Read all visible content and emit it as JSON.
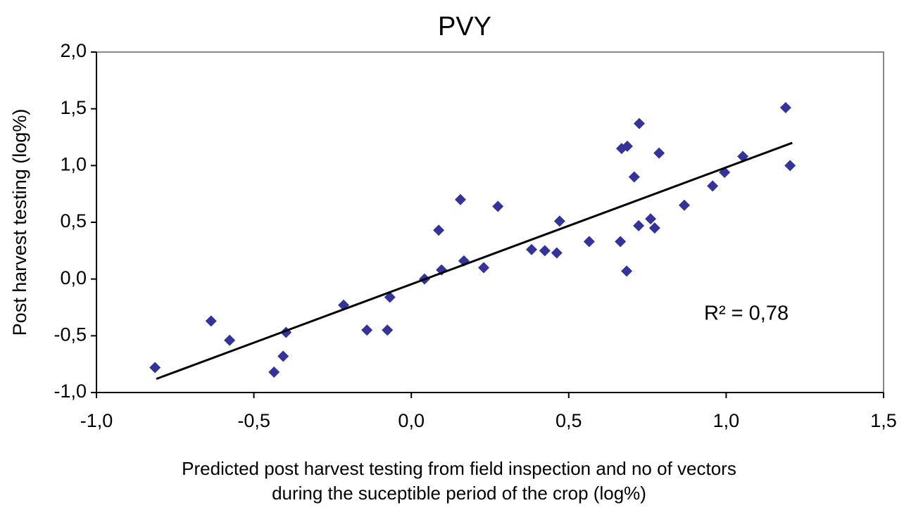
{
  "chart_data": {
    "type": "scatter",
    "title": "PVY",
    "x_label": [
      "Predicted post harvest testing from field inspection and no of vectors",
      "during the suceptible period of the crop (log%)"
    ],
    "y_label": "Post harvest testing (log%)",
    "annotation": "R² = 0,78",
    "color": "#333399",
    "xlim": [
      -1.0,
      1.5
    ],
    "ylim": [
      -1.0,
      2.0
    ],
    "xticks": [
      {
        "value": -1.0,
        "label": "-1,0"
      },
      {
        "value": -0.5,
        "label": "-0,5"
      },
      {
        "value": 0,
        "label": "0,0"
      },
      {
        "value": 0.5,
        "label": "0,5"
      },
      {
        "value": 1.0,
        "label": "1,0"
      },
      {
        "value": 1.5,
        "label": "1,5"
      }
    ],
    "yticks": [
      {
        "value": -1.0,
        "label": "-1,0"
      },
      {
        "value": -0.5,
        "label": "-0,5"
      },
      {
        "value": 0,
        "label": "0,0"
      },
      {
        "value": 0.5,
        "label": "0,5"
      },
      {
        "value": 1.0,
        "label": "1,0"
      },
      {
        "value": 1.5,
        "label": "1,5"
      },
      {
        "value": 2.0,
        "label": "2,0"
      }
    ],
    "x": [
      -0.814,
      -0.636,
      -0.577,
      -0.436,
      -0.407,
      -0.398,
      -0.215,
      -0.141,
      -0.076,
      -0.068,
      0.042,
      0.087,
      0.096,
      0.156,
      0.167,
      0.23,
      0.275,
      0.382,
      0.424,
      0.462,
      0.471,
      0.565,
      0.664,
      0.668,
      0.686,
      0.684,
      0.708,
      0.722,
      0.76,
      0.773,
      0.787,
      0.867,
      0.724,
      0.957,
      0.995,
      1.053,
      1.189,
      1.203
    ],
    "values": [
      -0.78,
      -0.37,
      -0.54,
      -0.82,
      -0.68,
      -0.47,
      -0.23,
      -0.45,
      -0.45,
      -0.16,
      0.0,
      0.43,
      0.08,
      0.7,
      0.16,
      0.1,
      0.64,
      0.26,
      0.25,
      0.23,
      0.51,
      0.33,
      0.33,
      1.15,
      1.17,
      0.07,
      0.9,
      0.47,
      0.53,
      0.45,
      1.11,
      0.65,
      1.37,
      0.82,
      0.94,
      1.08,
      1.51,
      1.0
    ],
    "trendline": {
      "x": [
        -0.81,
        1.21
      ],
      "y": [
        -0.88,
        1.2
      ]
    }
  }
}
